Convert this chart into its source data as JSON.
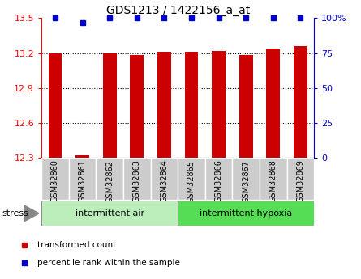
{
  "title": "GDS1213 / 1422156_a_at",
  "samples": [
    "GSM32860",
    "GSM32861",
    "GSM32862",
    "GSM32863",
    "GSM32864",
    "GSM32865",
    "GSM32866",
    "GSM32867",
    "GSM32868",
    "GSM32869"
  ],
  "red_values": [
    13.2,
    12.32,
    13.2,
    13.18,
    13.21,
    13.21,
    13.22,
    13.18,
    13.24,
    13.26
  ],
  "blue_values": [
    100,
    97,
    100,
    100,
    100,
    100,
    100,
    100,
    100,
    100
  ],
  "ylim_left": [
    12.3,
    13.5
  ],
  "ylim_right": [
    0,
    100
  ],
  "yticks_left": [
    12.3,
    12.6,
    12.9,
    13.2,
    13.5
  ],
  "yticks_right": [
    0,
    25,
    50,
    75,
    100
  ],
  "group1_label": "intermittent air",
  "group2_label": "intermittent hypoxia",
  "group1_count": 5,
  "group2_count": 5,
  "stress_label": "stress",
  "legend_red": "transformed count",
  "legend_blue": "percentile rank within the sample",
  "bar_color": "#cc0000",
  "blue_color": "#0000cc",
  "group1_bg": "#bbeebb",
  "group2_bg": "#55dd55",
  "tick_label_bg": "#cccccc",
  "bar_width": 0.5,
  "figsize": [
    4.45,
    3.45
  ],
  "dpi": 100
}
